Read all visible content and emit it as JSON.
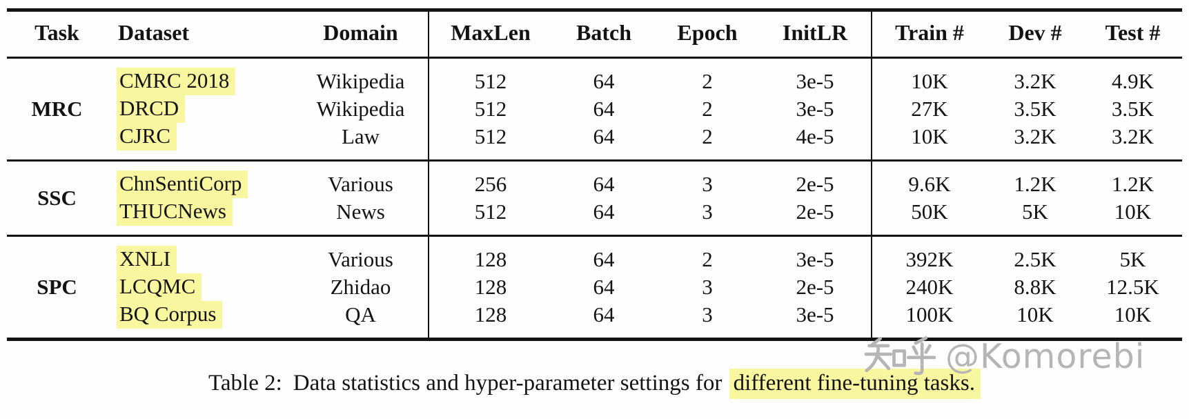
{
  "table": {
    "columns": [
      "Task",
      "Dataset",
      "Domain",
      "MaxLen",
      "Batch",
      "Epoch",
      "InitLR",
      "Train #",
      "Dev #",
      "Test #"
    ],
    "groups": [
      {
        "task": "MRC",
        "rows": [
          {
            "dataset": "CMRC 2018",
            "domain": "Wikipedia",
            "maxlen": "512",
            "batch": "64",
            "epoch": "2",
            "initlr": "3e-5",
            "train": "10K",
            "dev": "3.2K",
            "test": "4.9K"
          },
          {
            "dataset": "DRCD",
            "domain": "Wikipedia",
            "maxlen": "512",
            "batch": "64",
            "epoch": "2",
            "initlr": "3e-5",
            "train": "27K",
            "dev": "3.5K",
            "test": "3.5K"
          },
          {
            "dataset": "CJRC",
            "domain": "Law",
            "maxlen": "512",
            "batch": "64",
            "epoch": "2",
            "initlr": "4e-5",
            "train": "10K",
            "dev": "3.2K",
            "test": "3.2K"
          }
        ]
      },
      {
        "task": "SSC",
        "rows": [
          {
            "dataset": "ChnSentiCorp",
            "domain": "Various",
            "maxlen": "256",
            "batch": "64",
            "epoch": "3",
            "initlr": "2e-5",
            "train": "9.6K",
            "dev": "1.2K",
            "test": "1.2K"
          },
          {
            "dataset": "THUCNews",
            "domain": "News",
            "maxlen": "512",
            "batch": "64",
            "epoch": "3",
            "initlr": "2e-5",
            "train": "50K",
            "dev": "5K",
            "test": "10K"
          }
        ]
      },
      {
        "task": "SPC",
        "rows": [
          {
            "dataset": "XNLI",
            "domain": "Various",
            "maxlen": "128",
            "batch": "64",
            "epoch": "2",
            "initlr": "3e-5",
            "train": "392K",
            "dev": "2.5K",
            "test": "5K"
          },
          {
            "dataset": "LCQMC",
            "domain": "Zhidao",
            "maxlen": "128",
            "batch": "64",
            "epoch": "3",
            "initlr": "2e-5",
            "train": "240K",
            "dev": "8.8K",
            "test": "12.5K"
          },
          {
            "dataset": "BQ Corpus",
            "domain": "QA",
            "maxlen": "128",
            "batch": "64",
            "epoch": "3",
            "initlr": "3e-5",
            "train": "100K",
            "dev": "10K",
            "test": "10K"
          }
        ]
      }
    ]
  },
  "caption": {
    "prefix": "Table 2:",
    "body": "Data statistics and hyper-parameter settings for",
    "highlighted": "different fine-tuning tasks."
  },
  "watermark": {
    "brand": "知乎",
    "handle": "@Komorebi"
  },
  "colors": {
    "highlight": "#f9f6a0",
    "text": "#131313",
    "watermark": "#b5b5b5",
    "background": "#fefefe"
  }
}
